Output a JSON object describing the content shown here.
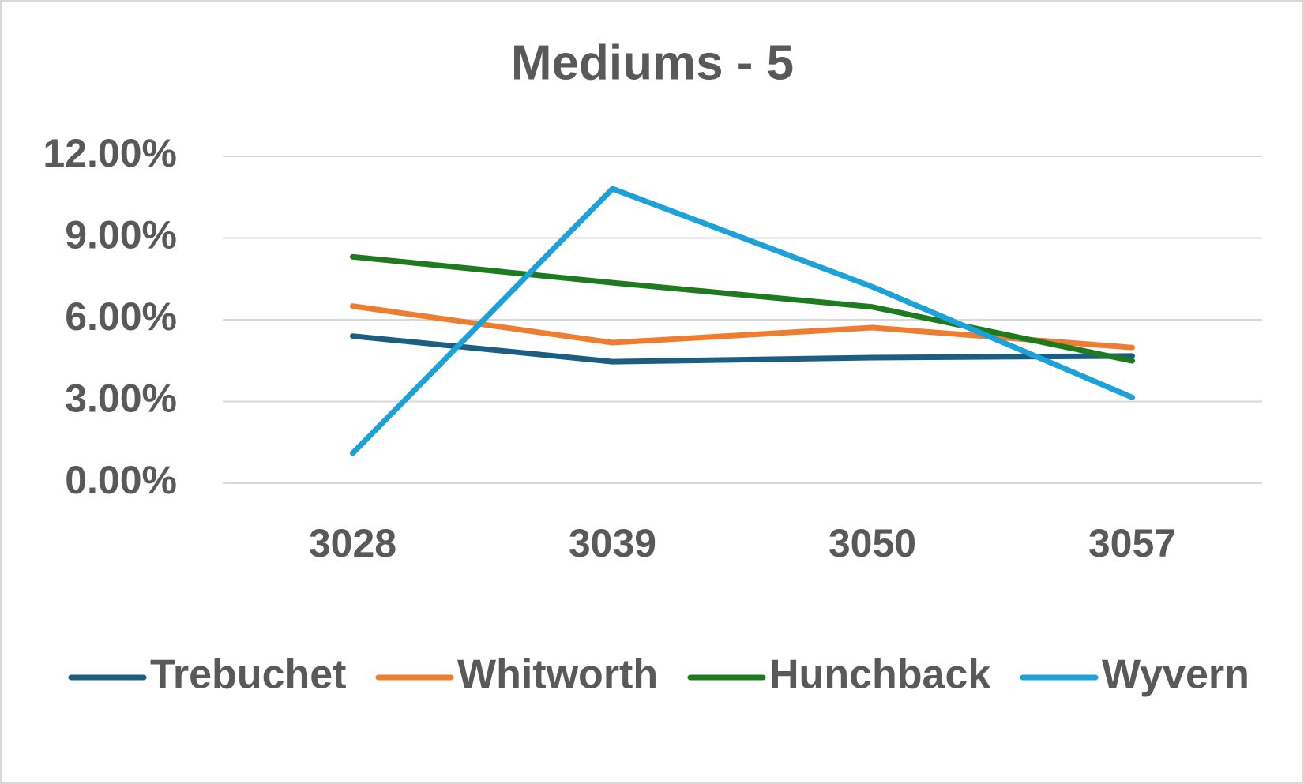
{
  "chart_data": {
    "type": "line",
    "title": "Mediums - 5",
    "categories": [
      "3028",
      "3039",
      "3050",
      "3057"
    ],
    "series": [
      {
        "name": "Trebuchet",
        "color": "#1b5e82",
        "values": [
          5.4,
          4.46,
          4.61,
          4.67
        ]
      },
      {
        "name": "Whitworth",
        "color": "#ed7d31",
        "values": [
          6.5,
          5.16,
          5.71,
          4.98
        ]
      },
      {
        "name": "Hunchback",
        "color": "#1e7a1e",
        "values": [
          8.31,
          7.36,
          6.47,
          4.49
        ]
      },
      {
        "name": "Wyvern",
        "color": "#1ca2d9",
        "values": [
          1.1,
          10.81,
          7.21,
          3.15
        ]
      }
    ],
    "ylim": [
      0,
      12
    ],
    "yticks": [
      {
        "value": 0,
        "label": "0.00%"
      },
      {
        "value": 3,
        "label": "3.00%"
      },
      {
        "value": 6,
        "label": "6.00%"
      },
      {
        "value": 9,
        "label": "9.00%"
      },
      {
        "value": 12,
        "label": "12.00%"
      }
    ],
    "grid": true,
    "legend": "bottom"
  }
}
